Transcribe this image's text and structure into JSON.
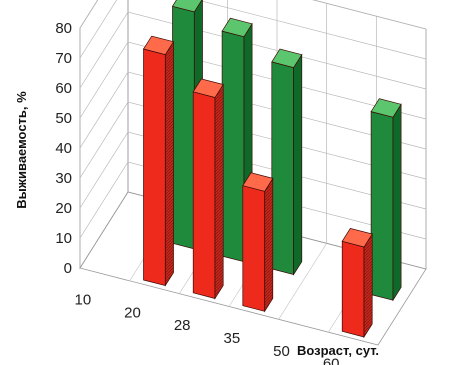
{
  "chart_data": {
    "type": "bar",
    "title": "",
    "xlabel": "Возраст, сут.",
    "ylabel": "Выживаемость, %",
    "ylim": [
      0,
      80
    ],
    "yticks": [
      "0",
      "10",
      "20",
      "30",
      "40",
      "50",
      "60",
      "70",
      "80"
    ],
    "categories": [
      "10",
      "20",
      "28",
      "35",
      "50",
      "60"
    ],
    "grid": true,
    "legend": "none",
    "series": [
      {
        "color": "#1f8a3c",
        "values": [
          null,
          79,
          75,
          69,
          null,
          61
        ]
      },
      {
        "color": "#ee2a1c",
        "values": [
          null,
          77,
          67,
          40,
          null,
          30
        ]
      }
    ]
  }
}
